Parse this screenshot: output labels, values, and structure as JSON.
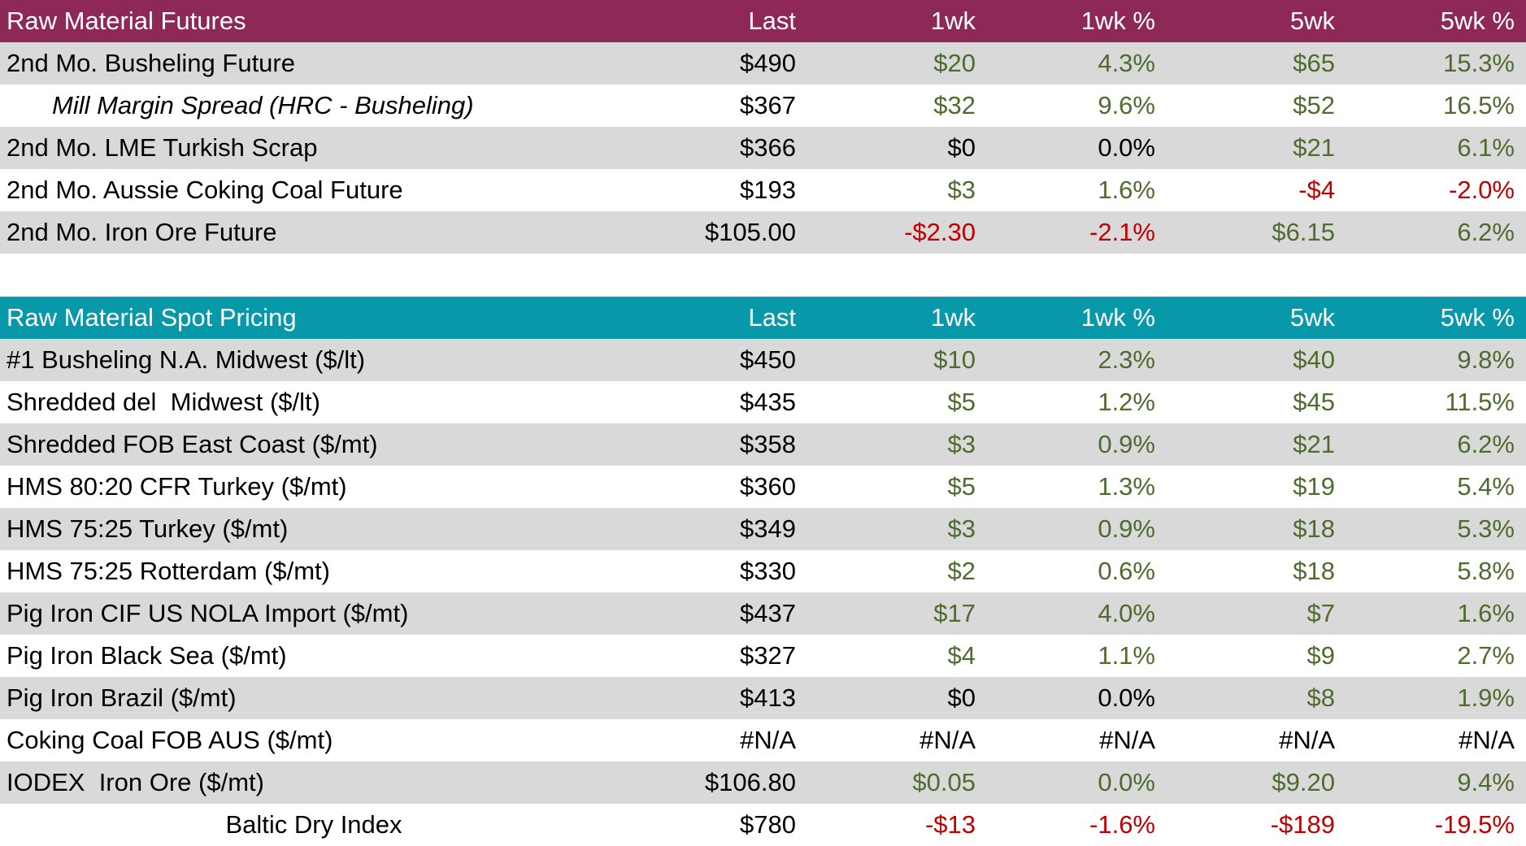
{
  "colors": {
    "futures_header_bg": "#8D2857",
    "spot_header_bg": "#0798A9",
    "header_text": "#FFFFFF",
    "positive": "#4F6B2D",
    "negative": "#C00000",
    "neutral": "#000000",
    "stripe": "#D9D9D9"
  },
  "chart_data": [
    {
      "type": "table",
      "title": "Raw Material Futures",
      "columns": [
        "Last",
        "1wk",
        "1wk %",
        "5wk",
        "5wk %"
      ],
      "rows": [
        {
          "label": "2nd Mo. Busheling Future",
          "label_style": "normal",
          "stripe": "gray",
          "values": [
            "$490",
            "$20",
            "4.3%",
            "$65",
            "15.3%"
          ],
          "tones": [
            "neu",
            "pos",
            "pos",
            "pos",
            "pos"
          ]
        },
        {
          "label": "Mill Margin Spread (HRC - Busheling)",
          "label_style": "italic-indent",
          "stripe": "white",
          "values": [
            "$367",
            "$32",
            "9.6%",
            "$52",
            "16.5%"
          ],
          "tones": [
            "neu",
            "pos",
            "pos",
            "pos",
            "pos"
          ]
        },
        {
          "label": "2nd Mo. LME Turkish Scrap",
          "label_style": "normal",
          "stripe": "gray",
          "values": [
            "$366",
            "$0",
            "0.0%",
            "$21",
            "6.1%"
          ],
          "tones": [
            "neu",
            "neu",
            "neu",
            "pos",
            "pos"
          ]
        },
        {
          "label": "2nd Mo. Aussie Coking Coal Future",
          "label_style": "normal",
          "stripe": "white",
          "values": [
            "$193",
            "$3",
            "1.6%",
            "-$4",
            "-2.0%"
          ],
          "tones": [
            "neu",
            "pos",
            "pos",
            "neg",
            "neg"
          ]
        },
        {
          "label": "2nd Mo. Iron Ore Future",
          "label_style": "normal",
          "stripe": "gray",
          "values": [
            "$105.00",
            "-$2.30",
            "-2.1%",
            "$6.15",
            "6.2%"
          ],
          "tones": [
            "neu",
            "neg",
            "neg",
            "pos",
            "pos"
          ]
        }
      ]
    },
    {
      "type": "table",
      "title": "Raw Material Spot Pricing",
      "columns": [
        "Last",
        "1wk",
        "1wk %",
        "5wk",
        "5wk %"
      ],
      "rows": [
        {
          "label": "#1 Busheling N.A. Midwest ($/lt)",
          "label_style": "normal",
          "stripe": "gray",
          "values": [
            "$450",
            "$10",
            "2.3%",
            "$40",
            "9.8%"
          ],
          "tones": [
            "neu",
            "pos",
            "pos",
            "pos",
            "pos"
          ]
        },
        {
          "label": "Shredded del  Midwest ($/lt)",
          "label_style": "normal",
          "stripe": "white",
          "values": [
            "$435",
            "$5",
            "1.2%",
            "$45",
            "11.5%"
          ],
          "tones": [
            "neu",
            "pos",
            "pos",
            "pos",
            "pos"
          ]
        },
        {
          "label": "Shredded FOB East Coast ($/mt)",
          "label_style": "normal",
          "stripe": "gray",
          "values": [
            "$358",
            "$3",
            "0.9%",
            "$21",
            "6.2%"
          ],
          "tones": [
            "neu",
            "pos",
            "pos",
            "pos",
            "pos"
          ]
        },
        {
          "label": "HMS 80:20 CFR Turkey ($/mt)",
          "label_style": "normal",
          "stripe": "white",
          "values": [
            "$360",
            "$5",
            "1.3%",
            "$19",
            "5.4%"
          ],
          "tones": [
            "neu",
            "pos",
            "pos",
            "pos",
            "pos"
          ]
        },
        {
          "label": "HMS 75:25 Turkey ($/mt)",
          "label_style": "normal",
          "stripe": "gray",
          "values": [
            "$349",
            "$3",
            "0.9%",
            "$18",
            "5.3%"
          ],
          "tones": [
            "neu",
            "pos",
            "pos",
            "pos",
            "pos"
          ]
        },
        {
          "label": "HMS 75:25 Rotterdam ($/mt)",
          "label_style": "normal",
          "stripe": "white",
          "values": [
            "$330",
            "$2",
            "0.6%",
            "$18",
            "5.8%"
          ],
          "tones": [
            "neu",
            "pos",
            "pos",
            "pos",
            "pos"
          ]
        },
        {
          "label": "Pig Iron CIF US NOLA Import ($/mt)",
          "label_style": "normal",
          "stripe": "gray",
          "values": [
            "$437",
            "$17",
            "4.0%",
            "$7",
            "1.6%"
          ],
          "tones": [
            "neu",
            "pos",
            "pos",
            "pos",
            "pos"
          ]
        },
        {
          "label": "Pig Iron Black Sea ($/mt)",
          "label_style": "normal",
          "stripe": "white",
          "values": [
            "$327",
            "$4",
            "1.1%",
            "$9",
            "2.7%"
          ],
          "tones": [
            "neu",
            "pos",
            "pos",
            "pos",
            "pos"
          ]
        },
        {
          "label": "Pig Iron Brazil ($/mt)",
          "label_style": "normal",
          "stripe": "gray",
          "values": [
            "$413",
            "$0",
            "0.0%",
            "$8",
            "1.9%"
          ],
          "tones": [
            "neu",
            "neu",
            "neu",
            "pos",
            "pos"
          ]
        },
        {
          "label": "Coking Coal FOB AUS ($/mt)",
          "label_style": "normal",
          "stripe": "white",
          "values": [
            "#N/A",
            "#N/A",
            "#N/A",
            "#N/A",
            "#N/A"
          ],
          "tones": [
            "neu",
            "neu",
            "neu",
            "neu",
            "neu"
          ]
        },
        {
          "label": "IODEX  Iron Ore ($/mt)",
          "label_style": "normal",
          "stripe": "gray",
          "values": [
            "$106.80",
            "$0.05",
            "0.0%",
            "$9.20",
            "9.4%"
          ],
          "tones": [
            "neu",
            "pos",
            "pos",
            "pos",
            "pos"
          ]
        },
        {
          "label": "Baltic Dry Index",
          "label_style": "center",
          "stripe": "white",
          "values": [
            "$780",
            "-$13",
            "-1.6%",
            "-$189",
            "-19.5%"
          ],
          "tones": [
            "neu",
            "neg",
            "neg",
            "neg",
            "neg"
          ]
        }
      ]
    }
  ]
}
